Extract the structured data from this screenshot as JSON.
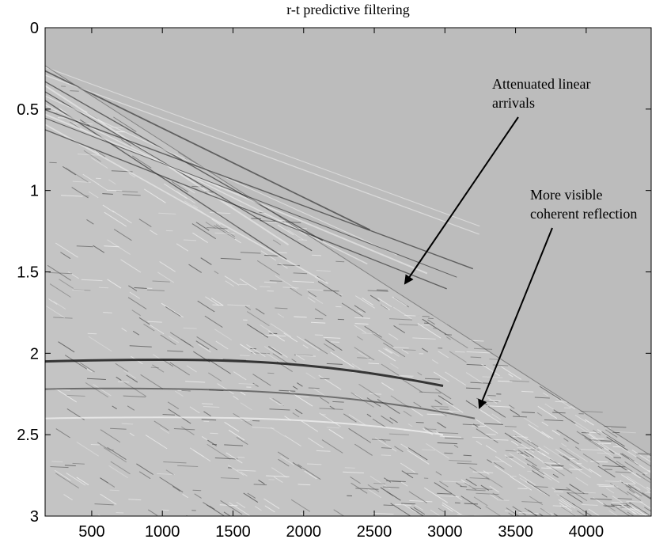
{
  "chart_data": {
    "type": "image",
    "title": "r-t predictive filtering",
    "xlim": [
      170,
      4460
    ],
    "xticks": [
      500,
      1000,
      1500,
      2000,
      2500,
      3000,
      3500,
      4000
    ],
    "ylim": [
      3,
      0
    ],
    "yticks": [
      0,
      0.5,
      1,
      1.5,
      2,
      2.5,
      3
    ],
    "annotations": [
      {
        "lines": [
          "Attenuated linear",
          "arrivals"
        ]
      },
      {
        "lines": [
          "More visible",
          "coherent reflection"
        ]
      }
    ]
  }
}
